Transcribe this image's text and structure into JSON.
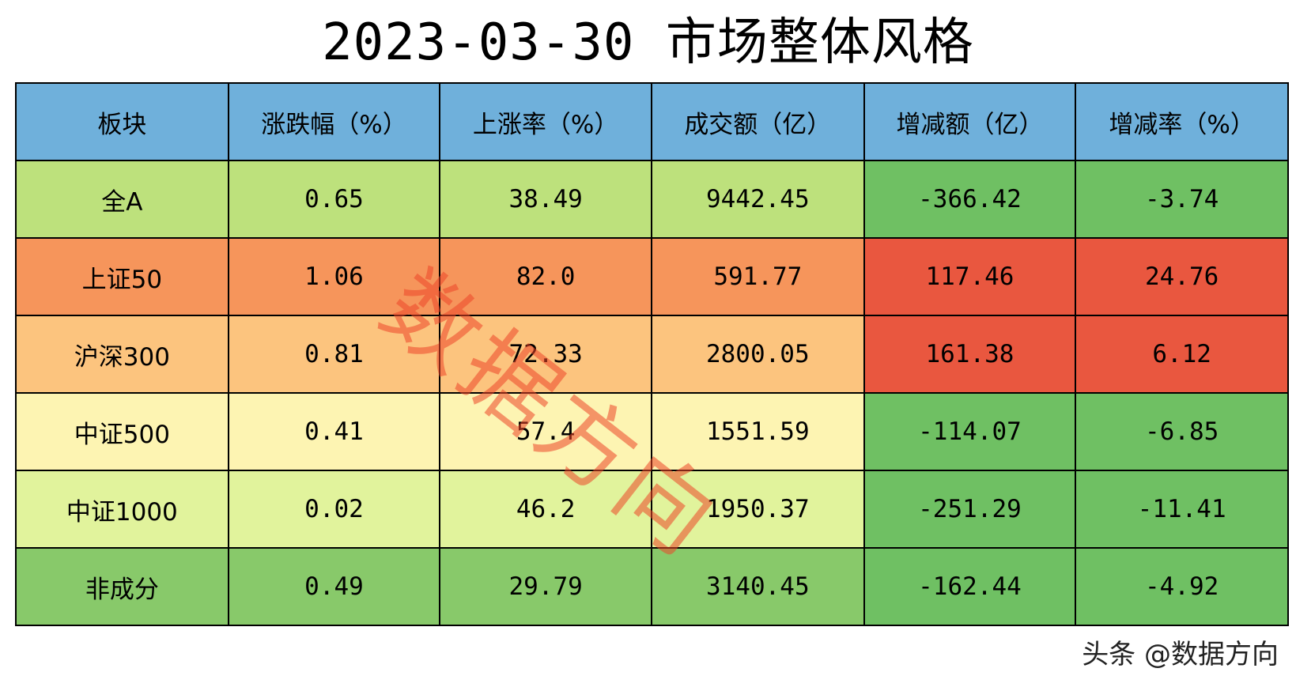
{
  "title": "2023-03-30 市场整体风格",
  "watermark": "数据方向",
  "credit": "头条 @数据方向",
  "chart_data": {
    "type": "table",
    "title": "2023-03-30 市场整体风格",
    "columns": [
      "板块",
      "涨跌幅（%）",
      "上涨率（%）",
      "成交额（亿）",
      "增减额（亿）",
      "增减率（%）"
    ],
    "header_color": "#6fb0db",
    "rows": [
      {
        "cells": [
          "全A",
          "0.65",
          "38.49",
          "9442.45",
          "-366.42",
          "-3.74"
        ],
        "colors": [
          "#bde17c",
          "#bde17c",
          "#bde17c",
          "#bde17c",
          "#6fc063",
          "#6fc063"
        ]
      },
      {
        "cells": [
          "上证50",
          "1.06",
          "82.0",
          "591.77",
          "117.46",
          "24.76"
        ],
        "colors": [
          "#f6955b",
          "#f6955b",
          "#f6955b",
          "#f6955b",
          "#e9573f",
          "#e9573f"
        ]
      },
      {
        "cells": [
          "沪深300",
          "0.81",
          "72.33",
          "2800.05",
          "161.38",
          "6.12"
        ],
        "colors": [
          "#fcc47e",
          "#fcc47e",
          "#fcc47e",
          "#fcc47e",
          "#e9573f",
          "#e9573f"
        ]
      },
      {
        "cells": [
          "中证500",
          "0.41",
          "57.4",
          "1551.59",
          "-114.07",
          "-6.85"
        ],
        "colors": [
          "#fdf4b2",
          "#fdf4b2",
          "#fdf4b2",
          "#fdf4b2",
          "#6fc063",
          "#6fc063"
        ]
      },
      {
        "cells": [
          "中证1000",
          "0.02",
          "46.2",
          "1950.37",
          "-251.29",
          "-11.41"
        ],
        "colors": [
          "#e1f39c",
          "#e1f39c",
          "#e1f39c",
          "#e1f39c",
          "#6fc063",
          "#6fc063"
        ]
      },
      {
        "cells": [
          "非成分",
          "0.49",
          "29.79",
          "3140.45",
          "-162.44",
          "-4.92"
        ],
        "colors": [
          "#88c96a",
          "#88c96a",
          "#88c96a",
          "#88c96a",
          "#6fc063",
          "#6fc063"
        ]
      }
    ]
  }
}
